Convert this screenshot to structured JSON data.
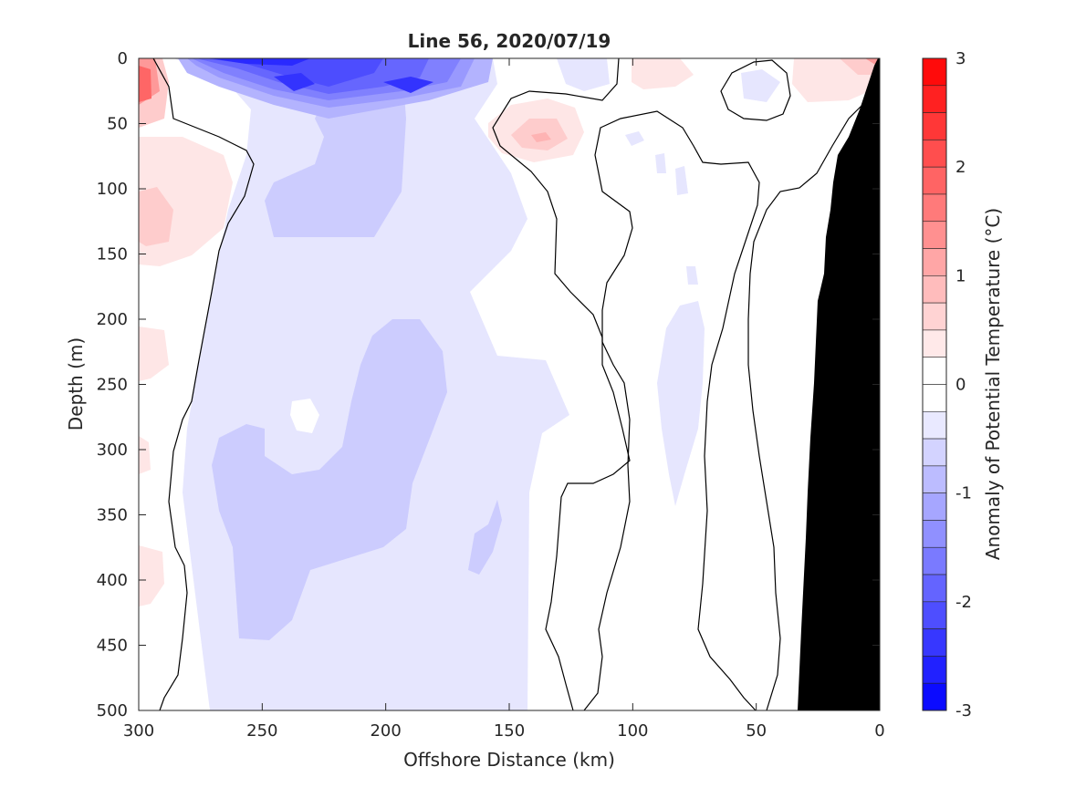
{
  "chart_data": {
    "type": "heatmap",
    "title": "Line 56, 2020/07/19",
    "xlabel": "Offshore Distance (km)",
    "ylabel": "Depth (m)",
    "xlim": [
      300,
      0
    ],
    "ylim": [
      0,
      500
    ],
    "x_reversed": true,
    "y_reversed": true,
    "x_ticks": [
      300,
      250,
      200,
      150,
      100,
      50,
      0
    ],
    "y_ticks": [
      0,
      50,
      100,
      150,
      200,
      250,
      300,
      350,
      400,
      450,
      500
    ],
    "colorbar": {
      "label": "Anomaly of Potential Temperature (°C)",
      "range": [
        -3,
        3
      ],
      "step": 0.25,
      "ticks": [
        3,
        2,
        1,
        0,
        -1,
        -2,
        -3
      ],
      "colors": {
        "cold": "#0000ff",
        "neutral": "#ffffff",
        "warm": "#ff0000"
      }
    },
    "grid": false,
    "regions": [
      {
        "name": "surface cold core",
        "anomaly": -2.0,
        "x_range_km": [
          290,
          150
        ],
        "depth_range_m": [
          0,
          40
        ]
      },
      {
        "name": "offshore warm edge",
        "anomaly": 1.75,
        "x_range_km": [
          300,
          290
        ],
        "depth_range_m": [
          0,
          60
        ]
      },
      {
        "name": "shallow warm eddy",
        "anomaly": 0.5,
        "x_range_km": [
          145,
          115
        ],
        "depth_range_m": [
          35,
          80
        ]
      },
      {
        "name": "deep cool body",
        "anomaly": -0.5,
        "x_range_km": [
          260,
          180
        ],
        "depth_range_m": [
          200,
          440
        ]
      },
      {
        "name": "nearshore warm surface",
        "anomaly": 0.75,
        "x_range_km": [
          20,
          0
        ],
        "depth_range_m": [
          0,
          15
        ]
      },
      {
        "name": "seafloor (no data)",
        "anomaly": null,
        "x_range_km": [
          33,
          0
        ],
        "depth_range_m": [
          35,
          500
        ]
      }
    ]
  }
}
